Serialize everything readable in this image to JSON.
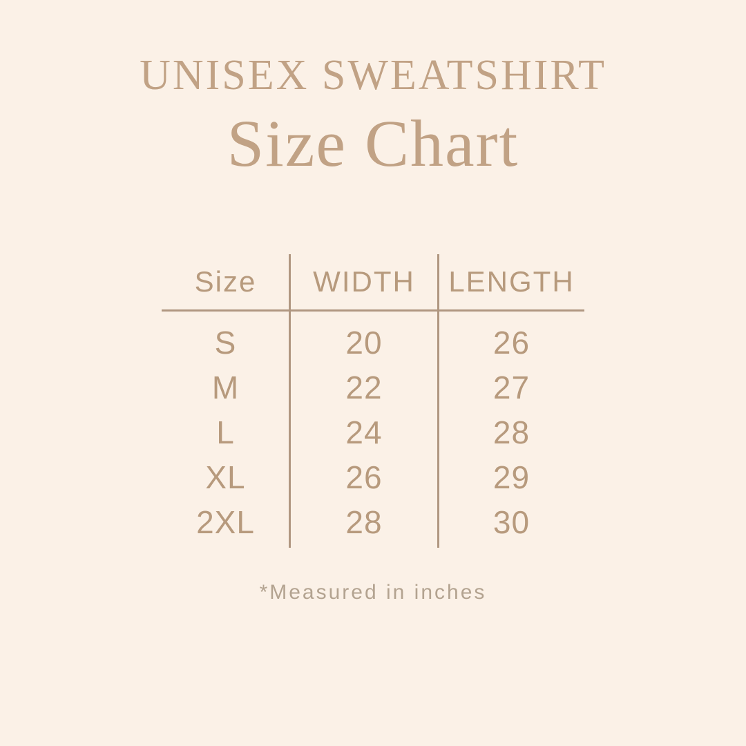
{
  "page": {
    "background_color": "#fbf1e7",
    "accent_color": "#c1a285",
    "table_color": "#b79a7d",
    "line_color": "#b09781",
    "footnote_color": "#b3a390"
  },
  "header": {
    "title": "UNISEX SWEATSHIRT",
    "subtitle": "Size Chart"
  },
  "chart_data": {
    "type": "table",
    "title": "UNISEX SWEATSHIRT Size Chart",
    "columns": [
      "Size",
      "WIDTH",
      "LENGTH"
    ],
    "rows": [
      [
        "S",
        "20",
        "26"
      ],
      [
        "M",
        "22",
        "27"
      ],
      [
        "L",
        "24",
        "28"
      ],
      [
        "XL",
        "26",
        "29"
      ],
      [
        "2XL",
        "28",
        "30"
      ]
    ],
    "units": "inches",
    "footnote": "*Measured in inches",
    "layout": {
      "grid": "vertical dividers between 3 columns, single horizontal rule under header",
      "alignment": "all cells centered"
    }
  }
}
